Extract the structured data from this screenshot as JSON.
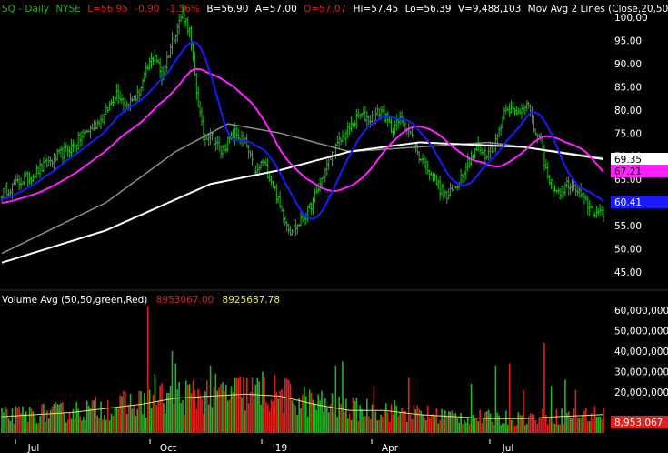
{
  "colors": {
    "background": "#000000",
    "up": "#22b522",
    "down": "#e02020",
    "ma20": "#1a1aff",
    "ma50": "#ff20ff",
    "ma100": "#8c8c8c",
    "ma200": "#ffffff",
    "vol_avg": "#e8e84a",
    "axis_text": "#ffffff",
    "tag_ma200": "#ffffff",
    "tag_ma50": "#ff20ff",
    "tag_ma20": "#1a1aff",
    "tag_vol": "#e02020"
  },
  "header": {
    "symbol": "SQ - Daily",
    "exchange": "NYSE",
    "last": "L=56.95",
    "change": "-0.90",
    "change_pct": "-1.56%",
    "bid": "B=56.90",
    "ask": "A=57.00",
    "open": "O=57.07",
    "high": "Hi=57.45",
    "low": "Lo=56.39",
    "volume": "V=9,488,103",
    "study": "Mov Avg 2 Lines (Close,20,50"
  },
  "volume_header": {
    "label": "Volume Avg (50,50,green,Red)",
    "value1": "8953067.00",
    "value2": "8925687.78"
  },
  "chart_data": {
    "type": "candlestick+volume",
    "price_axis": {
      "range": [
        42,
        103
      ],
      "ticks": [
        "45.00",
        "50.00",
        "55.00",
        "60.00",
        "65.00",
        "70.00",
        "75.00",
        "80.00",
        "85.00",
        "90.00",
        "95.00",
        "100.00"
      ]
    },
    "volume_axis": {
      "range": [
        0,
        65000000
      ],
      "ticks": [
        "20,000,000",
        "30,000,000",
        "40,000,000",
        "50,000,000",
        "60,000,000"
      ]
    },
    "x_labels": [
      "Jul",
      "Oct",
      "'19",
      "Apr",
      "Jul"
    ],
    "price_anchors": [
      [
        0,
        62
      ],
      [
        8,
        64
      ],
      [
        18,
        66
      ],
      [
        28,
        69
      ],
      [
        40,
        72
      ],
      [
        48,
        75
      ],
      [
        58,
        78
      ],
      [
        66,
        84
      ],
      [
        72,
        81
      ],
      [
        78,
        83
      ],
      [
        85,
        90
      ],
      [
        88,
        92
      ],
      [
        92,
        87
      ],
      [
        98,
        95
      ],
      [
        104,
        101
      ],
      [
        108,
        97
      ],
      [
        112,
        84
      ],
      [
        116,
        74
      ],
      [
        120,
        75
      ],
      [
        126,
        71
      ],
      [
        134,
        75
      ],
      [
        140,
        73
      ],
      [
        146,
        66
      ],
      [
        150,
        69
      ],
      [
        156,
        64
      ],
      [
        160,
        59
      ],
      [
        166,
        54
      ],
      [
        170,
        55
      ],
      [
        176,
        58
      ],
      [
        182,
        63
      ],
      [
        188,
        69
      ],
      [
        194,
        73
      ],
      [
        200,
        76
      ],
      [
        206,
        79
      ],
      [
        212,
        78
      ],
      [
        218,
        80
      ],
      [
        224,
        76
      ],
      [
        230,
        78
      ],
      [
        236,
        74
      ],
      [
        240,
        70
      ],
      [
        246,
        67
      ],
      [
        252,
        63
      ],
      [
        256,
        61
      ],
      [
        262,
        64
      ],
      [
        268,
        69
      ],
      [
        274,
        72
      ],
      [
        278,
        70
      ],
      [
        284,
        73
      ],
      [
        290,
        81
      ],
      [
        296,
        79
      ],
      [
        302,
        82
      ],
      [
        306,
        76
      ],
      [
        310,
        73
      ],
      [
        314,
        65
      ],
      [
        320,
        62
      ],
      [
        326,
        64
      ],
      [
        332,
        62
      ],
      [
        336,
        60
      ],
      [
        340,
        58
      ],
      [
        344,
        57.5
      ],
      [
        346,
        57
      ]
    ],
    "volume_anchors": [
      [
        0,
        8
      ],
      [
        20,
        9
      ],
      [
        40,
        10
      ],
      [
        60,
        12
      ],
      [
        80,
        14
      ],
      [
        100,
        17
      ],
      [
        120,
        18
      ],
      [
        140,
        19
      ],
      [
        160,
        18
      ],
      [
        180,
        14
      ],
      [
        200,
        11
      ],
      [
        220,
        11
      ],
      [
        240,
        9
      ],
      [
        260,
        8
      ],
      [
        280,
        7
      ],
      [
        300,
        7
      ],
      [
        320,
        8
      ],
      [
        346,
        9
      ]
    ],
    "volume_spikes": [
      [
        84,
        62
      ],
      [
        88,
        29
      ],
      [
        98,
        40
      ],
      [
        100,
        34
      ],
      [
        120,
        33
      ],
      [
        150,
        30
      ],
      [
        192,
        33
      ],
      [
        196,
        35
      ],
      [
        214,
        23
      ],
      [
        234,
        27
      ],
      [
        270,
        24
      ],
      [
        284,
        33
      ],
      [
        292,
        34
      ],
      [
        300,
        21
      ],
      [
        312,
        44
      ],
      [
        316,
        23
      ],
      [
        324,
        26
      ],
      [
        330,
        21
      ]
    ],
    "ma_final_values": {
      "ma200": "69.35",
      "ma50": "67.21",
      "ma20": "60.41"
    },
    "vol_final_tag": "8,953,067"
  }
}
